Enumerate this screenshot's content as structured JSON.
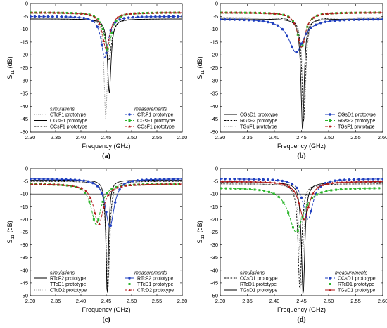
{
  "chart_data": [
    {
      "panel_label": "(a)",
      "type": "line",
      "xlabel": "Frequency (GHz)",
      "ylabel": "S",
      "ylabel_sub": "11",
      "ylabel_unit": " (dB)",
      "xlim": [
        2.3,
        2.6
      ],
      "ylim": [
        -50,
        0
      ],
      "xticks": [
        "2.30",
        "2.35",
        "2.40",
        "2.45",
        "2.50",
        "2.55",
        "2.60"
      ],
      "yticks": [
        "0",
        "-5",
        "-10",
        "-15",
        "-20",
        "-25",
        "-30",
        "-35",
        "-40",
        "-45",
        "-50"
      ],
      "reference_line": -10,
      "legend_sim_title": "simulations",
      "legend_meas_title": "measurements",
      "series": [
        {
          "name": "CTcF1 prototype",
          "group": "sim",
          "style": "dot",
          "color": "#888888",
          "f0": 2.449,
          "depth": -45,
          "base": -5.5,
          "w": 0.022
        },
        {
          "name": "CGsF1 prototype",
          "group": "sim",
          "style": "solid",
          "color": "#000000",
          "f0": 2.456,
          "depth": -35,
          "base": -6,
          "w": 0.02
        },
        {
          "name": "CCsF1 prototype",
          "group": "sim",
          "style": "short",
          "color": "#000000",
          "f0": 2.455,
          "depth": -22,
          "base": -6,
          "w": 0.025
        },
        {
          "name": "CTcF1 prototype",
          "group": "meas",
          "style": "dash",
          "color": "#1f3fbf",
          "marker": "circle",
          "f0": 2.447,
          "depth": -21,
          "base": -5,
          "w": 0.035
        },
        {
          "name": "CGsF1 prototype",
          "group": "meas",
          "style": "dash",
          "color": "#2bb52b",
          "marker": "square",
          "f0": 2.453,
          "depth": -18,
          "base": -3.5,
          "w": 0.04
        },
        {
          "name": "CCsF1 prototype",
          "group": "meas",
          "style": "dash",
          "color": "#b01818",
          "marker": "triangle",
          "f0": 2.45,
          "depth": -18,
          "base": -3.5,
          "w": 0.04
        }
      ]
    },
    {
      "panel_label": "(b)",
      "type": "line",
      "xlabel": "Frequency (GHz)",
      "ylabel": "S",
      "ylabel_sub": "11",
      "ylabel_unit": " (dB)",
      "xlim": [
        2.3,
        2.6
      ],
      "ylim": [
        -50,
        0
      ],
      "xticks": [
        "2.30",
        "2.35",
        "2.40",
        "2.45",
        "2.50",
        "2.55",
        "2.60"
      ],
      "yticks": [
        "0",
        "-5",
        "-10",
        "-15",
        "-20",
        "-25",
        "-30",
        "-35",
        "-40",
        "-45",
        "-50"
      ],
      "reference_line": -10,
      "legend_sim_title": "",
      "legend_meas_title": "",
      "series": [
        {
          "name": "CGsD1 prototype",
          "group": "sim",
          "style": "solid",
          "color": "#000000",
          "f0": 2.452,
          "depth": -50,
          "base": -6,
          "w": 0.02
        },
        {
          "name": "RGsF2 prototype",
          "group": "sim",
          "style": "short",
          "color": "#000000",
          "f0": 2.454,
          "depth": -46,
          "base": -5.5,
          "w": 0.022
        },
        {
          "name": "TGsF1 prototype",
          "group": "sim",
          "style": "dot",
          "color": "#888888",
          "f0": 2.455,
          "depth": -45,
          "base": -5.5,
          "w": 0.022
        },
        {
          "name": "CGsD1 prototype",
          "group": "meas",
          "style": "solid",
          "color": "#1f3fbf",
          "marker": "circle",
          "f0": 2.44,
          "depth": -19,
          "base": -6,
          "w": 0.06
        },
        {
          "name": "RGsF2 prototype",
          "group": "meas",
          "style": "dash",
          "color": "#2bb52b",
          "marker": "square",
          "f0": 2.45,
          "depth": -17,
          "base": -3.5,
          "w": 0.04
        },
        {
          "name": "TGsF1 prototype",
          "group": "meas",
          "style": "dash",
          "color": "#b01818",
          "marker": "triangle",
          "f0": 2.45,
          "depth": -17,
          "base": -3.5,
          "w": 0.04
        }
      ]
    },
    {
      "panel_label": "(c)",
      "type": "line",
      "xlabel": "Frequency (GHz)",
      "ylabel": "S",
      "ylabel_sub": "11",
      "ylabel_unit": " (dB)",
      "xlim": [
        2.3,
        2.6
      ],
      "ylim": [
        -50,
        0
      ],
      "xticks": [
        "2.30",
        "2.35",
        "2.40",
        "2.45",
        "2.50",
        "2.55",
        "2.60"
      ],
      "yticks": [
        "0",
        "-5",
        "-10",
        "-15",
        "-20",
        "-25",
        "-30",
        "-35",
        "-40",
        "-45",
        "-50"
      ],
      "reference_line": -10,
      "legend_sim_title": "simulations",
      "legend_meas_title": "measurements",
      "series": [
        {
          "name": "RTcF2 prototype",
          "group": "sim",
          "style": "solid",
          "color": "#000000",
          "f0": 2.452,
          "depth": -50,
          "base": -4.5,
          "w": 0.02
        },
        {
          "name": "TTcD1 prototype",
          "group": "sim",
          "style": "short",
          "color": "#000000",
          "f0": 2.453,
          "depth": -48,
          "base": -5,
          "w": 0.025
        },
        {
          "name": "CTcD2 prototype",
          "group": "sim",
          "style": "dot",
          "color": "#888888",
          "f0": 2.454,
          "depth": -45,
          "base": -5,
          "w": 0.025
        },
        {
          "name": "RTcF2 prototype",
          "group": "meas",
          "style": "solid",
          "color": "#1f3fbf",
          "marker": "circle",
          "f0": 2.457,
          "depth": -23,
          "base": -4,
          "w": 0.05
        },
        {
          "name": "TTcD1 prototype",
          "group": "meas",
          "style": "dash",
          "color": "#2bb52b",
          "marker": "square",
          "f0": 2.43,
          "depth": -22,
          "base": -6,
          "w": 0.045
        },
        {
          "name": "CTcD2 prototype",
          "group": "meas",
          "style": "dash",
          "color": "#b01818",
          "marker": "triangle",
          "f0": 2.435,
          "depth": -22,
          "base": -6,
          "w": 0.045
        }
      ]
    },
    {
      "panel_label": "(d)",
      "type": "line",
      "xlabel": "Frequency (GHz)",
      "ylabel": "S",
      "ylabel_sub": "11",
      "ylabel_unit": " (dB)",
      "xlim": [
        2.3,
        2.6
      ],
      "ylim": [
        -50,
        0
      ],
      "xticks": [
        "2.30",
        "2.35",
        "2.40",
        "2.45",
        "2.50",
        "2.55",
        "2.60"
      ],
      "yticks": [
        "0",
        "-5",
        "-10",
        "-15",
        "-20",
        "-25",
        "-30",
        "-35",
        "-40",
        "-45",
        "-50"
      ],
      "reference_line": -10,
      "legend_sim_title": "simulations",
      "legend_meas_title": "measurements",
      "series": [
        {
          "name": "CCsD1 prototype",
          "group": "sim",
          "style": "short",
          "color": "#000000",
          "f0": 2.447,
          "depth": -48,
          "base": -6,
          "w": 0.022
        },
        {
          "name": "RTcD1 prototype",
          "group": "sim",
          "style": "dot",
          "color": "#888888",
          "f0": 2.45,
          "depth": -46,
          "base": -6,
          "w": 0.025
        },
        {
          "name": "TGsD1 prototype",
          "group": "sim",
          "style": "solid",
          "color": "#000000",
          "f0": 2.453,
          "depth": -50,
          "base": -5.5,
          "w": 0.022
        },
        {
          "name": "CCsD1 prototype",
          "group": "meas",
          "style": "dash",
          "color": "#1f3fbf",
          "marker": "circle",
          "f0": 2.462,
          "depth": -20,
          "base": -4,
          "w": 0.05
        },
        {
          "name": "RTcD1 prototype",
          "group": "meas",
          "style": "dash",
          "color": "#2bb52b",
          "marker": "square",
          "f0": 2.44,
          "depth": -25,
          "base": -7.5,
          "w": 0.06
        },
        {
          "name": "TGsD1 prototype",
          "group": "meas",
          "style": "solid",
          "color": "#b01818",
          "marker": "triangle",
          "f0": 2.455,
          "depth": -20,
          "base": -5,
          "w": 0.045
        }
      ]
    }
  ]
}
